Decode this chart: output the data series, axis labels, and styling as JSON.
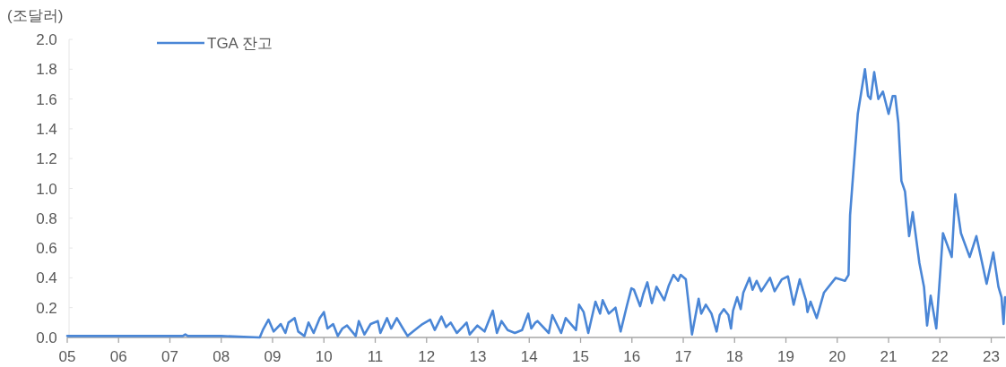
{
  "chart_data": {
    "type": "line",
    "ylabel": "(조달러)",
    "legend": "top left",
    "x": [
      2005.0,
      2006.0,
      2007.0,
      2007.25,
      2007.3,
      2007.35,
      2008.0,
      2008.75,
      2008.81,
      2008.92,
      2009.02,
      2009.16,
      2009.25,
      2009.31,
      2009.43,
      2009.5,
      2009.62,
      2009.7,
      2009.8,
      2009.92,
      2010.0,
      2010.07,
      2010.18,
      2010.27,
      2010.36,
      2010.45,
      2010.62,
      2010.68,
      2010.79,
      2010.91,
      2011.05,
      2011.1,
      2011.23,
      2011.31,
      2011.42,
      2011.54,
      2011.63,
      2011.77,
      2011.92,
      2012.07,
      2012.16,
      2012.29,
      2012.38,
      2012.47,
      2012.59,
      2012.7,
      2012.78,
      2012.84,
      2012.99,
      2013.13,
      2013.29,
      2013.37,
      2013.46,
      2013.58,
      2013.72,
      2013.86,
      2013.98,
      2014.04,
      2014.12,
      2014.16,
      2014.38,
      2014.45,
      2014.62,
      2014.71,
      2014.91,
      2014.97,
      2015.06,
      2015.15,
      2015.29,
      2015.38,
      2015.43,
      2015.55,
      2015.68,
      2015.78,
      2015.9,
      2015.99,
      2016.04,
      2016.16,
      2016.22,
      2016.3,
      2016.39,
      2016.48,
      2016.63,
      2016.72,
      2016.81,
      2016.9,
      2016.95,
      2017.05,
      2017.09,
      2017.17,
      2017.3,
      2017.35,
      2017.44,
      2017.55,
      2017.65,
      2017.71,
      2017.79,
      2017.88,
      2017.93,
      2017.97,
      2018.05,
      2018.12,
      2018.17,
      2018.29,
      2018.35,
      2018.43,
      2018.52,
      2018.69,
      2018.78,
      2018.92,
      2019.04,
      2019.15,
      2019.27,
      2019.39,
      2019.42,
      2019.48,
      2019.6,
      2019.74,
      2019.97,
      2020.15,
      2020.22,
      2020.25,
      2020.32,
      2020.4,
      2020.54,
      2020.6,
      2020.65,
      2020.72,
      2020.8,
      2020.89,
      2021.0,
      2021.08,
      2021.13,
      2021.19,
      2021.25,
      2021.32,
      2021.4,
      2021.47,
      2021.6,
      2021.69,
      2021.75,
      2021.82,
      2021.93,
      2022.06,
      2022.23,
      2022.3,
      2022.41,
      2022.58,
      2022.71,
      2022.91,
      2023.04,
      2023.14,
      2023.2,
      2023.24,
      2023.27
    ],
    "series": [
      {
        "name": "TGA 잔고",
        "color": "#4a86d6",
        "values": [
          0.01,
          0.01,
          0.01,
          0.01,
          0.02,
          0.01,
          0.01,
          0.0,
          0.05,
          0.12,
          0.04,
          0.09,
          0.03,
          0.1,
          0.13,
          0.04,
          0.01,
          0.1,
          0.03,
          0.13,
          0.17,
          0.06,
          0.09,
          0.01,
          0.06,
          0.08,
          0.01,
          0.11,
          0.02,
          0.09,
          0.11,
          0.03,
          0.13,
          0.06,
          0.13,
          0.06,
          0.01,
          0.05,
          0.09,
          0.12,
          0.05,
          0.14,
          0.07,
          0.1,
          0.03,
          0.07,
          0.1,
          0.02,
          0.08,
          0.04,
          0.18,
          0.03,
          0.11,
          0.05,
          0.03,
          0.05,
          0.16,
          0.06,
          0.1,
          0.11,
          0.03,
          0.15,
          0.03,
          0.13,
          0.05,
          0.22,
          0.17,
          0.03,
          0.24,
          0.16,
          0.25,
          0.16,
          0.2,
          0.04,
          0.21,
          0.33,
          0.32,
          0.21,
          0.29,
          0.37,
          0.23,
          0.34,
          0.25,
          0.35,
          0.42,
          0.38,
          0.42,
          0.39,
          0.27,
          0.02,
          0.26,
          0.16,
          0.22,
          0.16,
          0.04,
          0.15,
          0.19,
          0.15,
          0.06,
          0.18,
          0.27,
          0.19,
          0.3,
          0.4,
          0.32,
          0.38,
          0.31,
          0.4,
          0.31,
          0.39,
          0.41,
          0.22,
          0.39,
          0.25,
          0.17,
          0.24,
          0.13,
          0.3,
          0.4,
          0.38,
          0.42,
          0.82,
          1.14,
          1.5,
          1.8,
          1.62,
          1.6,
          1.78,
          1.6,
          1.65,
          1.5,
          1.62,
          1.62,
          1.44,
          1.05,
          0.98,
          0.68,
          0.84,
          0.5,
          0.34,
          0.08,
          0.28,
          0.06,
          0.7,
          0.54,
          0.96,
          0.7,
          0.54,
          0.68,
          0.36,
          0.57,
          0.34,
          0.27,
          0.09,
          0.27
        ]
      }
    ],
    "xlim": [
      2005,
      2023.27
    ],
    "ylim": [
      0,
      2.0
    ],
    "xticks": [
      {
        "value": 2005,
        "label": "05"
      },
      {
        "value": 2006,
        "label": "06"
      },
      {
        "value": 2007,
        "label": "07"
      },
      {
        "value": 2008,
        "label": "08"
      },
      {
        "value": 2009,
        "label": "09"
      },
      {
        "value": 2010,
        "label": "10"
      },
      {
        "value": 2011,
        "label": "11"
      },
      {
        "value": 2012,
        "label": "12"
      },
      {
        "value": 2013,
        "label": "13"
      },
      {
        "value": 2014,
        "label": "14"
      },
      {
        "value": 2015,
        "label": "15"
      },
      {
        "value": 2016,
        "label": "16"
      },
      {
        "value": 2017,
        "label": "17"
      },
      {
        "value": 2018,
        "label": "18"
      },
      {
        "value": 2019,
        "label": "19"
      },
      {
        "value": 2020,
        "label": "20"
      },
      {
        "value": 2021,
        "label": "21"
      },
      {
        "value": 2022,
        "label": "22"
      },
      {
        "value": 2023,
        "label": "23"
      }
    ],
    "yticks": [
      {
        "value": 0,
        "label": "0.0"
      },
      0.2,
      0.4,
      0.6,
      0.8,
      {
        "value": 1,
        "label": "1.0"
      },
      1.2,
      1.4,
      1.6,
      1.8,
      {
        "value": 2,
        "label": "2.0"
      }
    ]
  }
}
